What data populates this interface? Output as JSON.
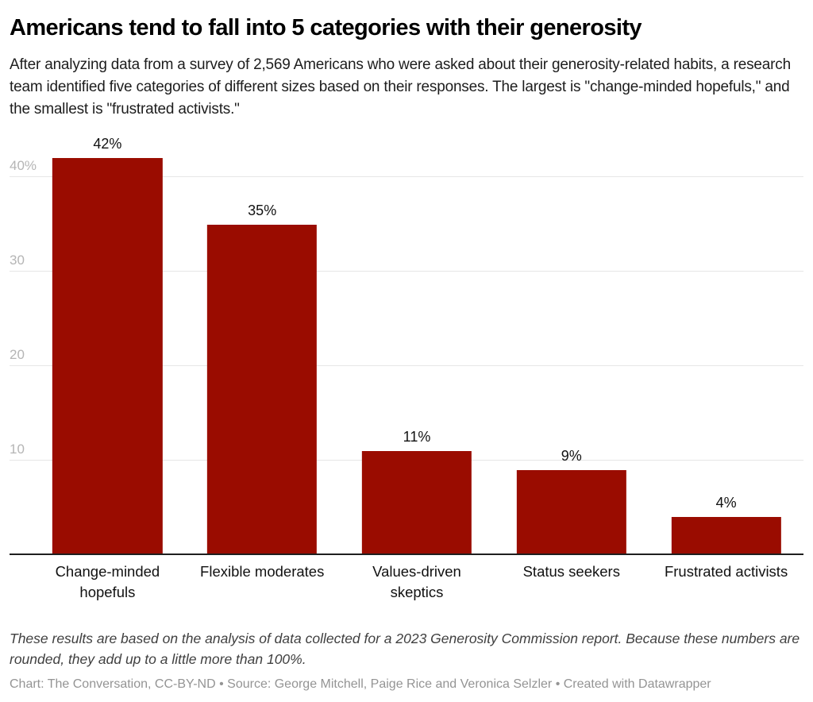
{
  "title": "Americans tend to fall into 5 categories with their generosity",
  "subtitle": "After analyzing data from a survey of 2,569 Americans who were asked about their generosity-related habits, a research team identified five categories of different sizes based on their responses. The largest is \"change-minded hopefuls,\" and the smallest is \"frustrated activists.\"",
  "chart_data": {
    "type": "bar",
    "title": "Americans tend to fall into 5 categories with their generosity",
    "categories": [
      "Change-minded hopefuls",
      "Flexible moderates",
      "Values-driven skeptics",
      "Status seekers",
      "Frustrated activists"
    ],
    "values": [
      42,
      35,
      11,
      9,
      4
    ],
    "value_labels": [
      "42%",
      "35%",
      "11%",
      "9%",
      "4%"
    ],
    "yticks": [
      {
        "value": 10,
        "label": "10"
      },
      {
        "value": 20,
        "label": "20"
      },
      {
        "value": 30,
        "label": "30"
      },
      {
        "value": 40,
        "label": "40%"
      }
    ],
    "ylim": [
      0,
      44
    ],
    "xlabel": "",
    "ylabel": "",
    "grid": "horizontal",
    "legend": "none",
    "bar_color": "#9a0c00",
    "axis_color": "#1f1f1f",
    "gridline_color": "#e6e6e6",
    "tick_label_color": "#b5b5b5"
  },
  "footnote": "These results are based on the analysis of data collected for a 2023 Generosity Commission report. Because these numbers are rounded, they add up to a little more than 100%.",
  "credit": "Chart: The Conversation, CC-BY-ND • Source: George Mitchell, Paige Rice and Veronica Selzler • Created with Datawrapper"
}
